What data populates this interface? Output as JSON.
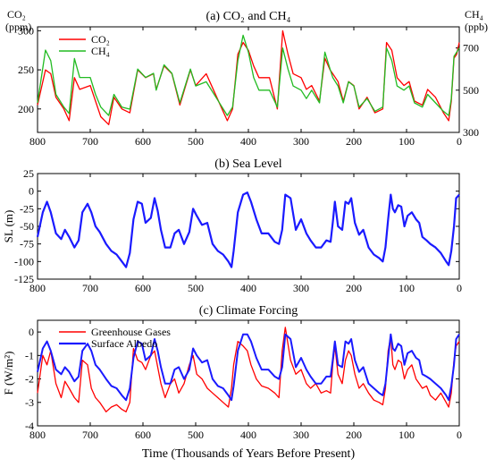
{
  "colors": {
    "co2": "#ff0000",
    "ch4": "#22bb22",
    "sea_level": "#1a1aff",
    "ghg": "#ff0000",
    "albedo": "#1a1aff",
    "axis": "#000000"
  },
  "xlabel": "Time (Thousands of Years Before Present)",
  "chart_data": [
    {
      "type": "line",
      "title": "(a)  CO₂ and CH₄",
      "ylabel_left": "CO₂ (ppm)",
      "ylabel_right": "CH₄ (ppb)",
      "xlim": [
        800,
        0
      ],
      "ylim": [
        170,
        305
      ],
      "ylim_right": [
        300,
        800
      ],
      "xticks": [
        800,
        700,
        600,
        500,
        400,
        300,
        200,
        100,
        0
      ],
      "yticks": [
        200,
        250,
        300
      ],
      "yticks_right": [
        300,
        500,
        700
      ],
      "legend": "top-left",
      "series": [
        {
          "name": "CO₂",
          "axis": "left",
          "x": [
            800,
            785,
            775,
            765,
            750,
            740,
            730,
            720,
            700,
            690,
            680,
            665,
            655,
            640,
            625,
            610,
            595,
            580,
            575,
            560,
            545,
            530,
            510,
            500,
            480,
            460,
            440,
            430,
            420,
            410,
            400,
            390,
            380,
            360,
            345,
            335,
            325,
            315,
            300,
            290,
            280,
            265,
            255,
            245,
            240,
            230,
            220,
            210,
            200,
            190,
            175,
            160,
            145,
            138,
            128,
            118,
            105,
            95,
            85,
            70,
            60,
            45,
            30,
            20,
            15,
            10,
            5,
            0
          ],
          "values": [
            205,
            250,
            245,
            215,
            200,
            185,
            240,
            225,
            230,
            210,
            190,
            180,
            215,
            200,
            195,
            250,
            240,
            245,
            225,
            255,
            245,
            205,
            250,
            230,
            245,
            215,
            185,
            200,
            270,
            285,
            275,
            255,
            240,
            240,
            200,
            300,
            270,
            245,
            240,
            225,
            230,
            210,
            265,
            250,
            245,
            235,
            210,
            235,
            230,
            200,
            215,
            195,
            200,
            285,
            275,
            240,
            230,
            235,
            210,
            205,
            225,
            215,
            195,
            185,
            210,
            265,
            270,
            285
          ]
        },
        {
          "name": "CH₄",
          "axis": "right",
          "x": [
            800,
            785,
            775,
            765,
            750,
            740,
            730,
            720,
            700,
            690,
            680,
            665,
            655,
            640,
            625,
            610,
            595,
            580,
            575,
            560,
            545,
            530,
            510,
            500,
            480,
            460,
            440,
            430,
            420,
            410,
            400,
            390,
            380,
            360,
            345,
            335,
            325,
            315,
            300,
            290,
            280,
            265,
            255,
            245,
            240,
            230,
            220,
            210,
            200,
            190,
            175,
            160,
            145,
            138,
            128,
            118,
            105,
            95,
            85,
            70,
            60,
            45,
            30,
            20,
            15,
            10,
            5,
            0
          ],
          "values": [
            440,
            690,
            640,
            480,
            420,
            390,
            650,
            560,
            560,
            480,
            420,
            380,
            480,
            420,
            410,
            600,
            560,
            580,
            500,
            620,
            580,
            440,
            600,
            520,
            540,
            460,
            380,
            420,
            640,
            760,
            680,
            560,
            500,
            500,
            420,
            700,
            600,
            520,
            500,
            460,
            500,
            440,
            680,
            600,
            560,
            520,
            440,
            540,
            520,
            420,
            460,
            400,
            420,
            700,
            640,
            520,
            500,
            520,
            440,
            420,
            480,
            440,
            400,
            380,
            460,
            660,
            680,
            700
          ]
        }
      ]
    },
    {
      "type": "line",
      "title": "(b)  Sea Level",
      "ylabel": "SL (m)",
      "xlim": [
        800,
        0
      ],
      "ylim": [
        -125,
        25
      ],
      "xticks": [
        800,
        700,
        600,
        500,
        400,
        300,
        200,
        100,
        0
      ],
      "yticks": [
        25,
        0,
        -25,
        -50,
        -75,
        -100,
        -125
      ],
      "series": [
        {
          "name": "",
          "x": [
            800,
            790,
            782,
            775,
            765,
            755,
            748,
            740,
            730,
            722,
            715,
            705,
            698,
            690,
            682,
            670,
            660,
            650,
            640,
            632,
            625,
            618,
            610,
            602,
            595,
            585,
            578,
            572,
            566,
            558,
            548,
            540,
            532,
            522,
            512,
            505,
            498,
            488,
            478,
            468,
            458,
            448,
            438,
            432,
            428,
            420,
            410,
            402,
            395,
            385,
            375,
            362,
            350,
            342,
            336,
            330,
            320,
            310,
            300,
            290,
            282,
            272,
            262,
            252,
            244,
            240,
            236,
            230,
            222,
            216,
            210,
            205,
            198,
            190,
            182,
            172,
            162,
            152,
            145,
            140,
            135,
            130,
            126,
            122,
            116,
            110,
            104,
            98,
            90,
            82,
            76,
            70,
            62,
            55,
            45,
            35,
            25,
            20,
            15,
            10,
            6,
            0
          ],
          "values": [
            -65,
            -30,
            -15,
            -30,
            -60,
            -68,
            -55,
            -65,
            -80,
            -70,
            -30,
            -18,
            -30,
            -50,
            -58,
            -75,
            -85,
            -90,
            -100,
            -108,
            -88,
            -40,
            -15,
            -18,
            -45,
            -38,
            -10,
            -28,
            -55,
            -80,
            -80,
            -60,
            -55,
            -75,
            -58,
            -25,
            -35,
            -48,
            -45,
            -75,
            -85,
            -90,
            -100,
            -108,
            -85,
            -30,
            -5,
            -2,
            -15,
            -40,
            -60,
            -60,
            -72,
            -75,
            -55,
            -5,
            -10,
            -55,
            -40,
            -60,
            -70,
            -80,
            -80,
            -70,
            -72,
            -45,
            -15,
            -50,
            -55,
            -15,
            -18,
            -10,
            -45,
            -62,
            -55,
            -80,
            -90,
            -95,
            -100,
            -80,
            -40,
            -5,
            -25,
            -30,
            -20,
            -22,
            -50,
            -35,
            -30,
            -40,
            -45,
            -65,
            -70,
            -75,
            -80,
            -88,
            -100,
            -105,
            -85,
            -50,
            -10,
            -5
          ]
        }
      ]
    },
    {
      "type": "line",
      "title": "(c)  Climate Forcing",
      "ylabel": "F (W/m²)",
      "xlabel": "Time (Thousands of Years Before Present)",
      "xlim": [
        800,
        0
      ],
      "ylim": [
        -4,
        0.5
      ],
      "xticks": [
        800,
        700,
        600,
        500,
        400,
        300,
        200,
        100,
        0
      ],
      "yticks": [
        0,
        -1,
        -2,
        -3,
        -4
      ],
      "legend": "top-left",
      "series": [
        {
          "name": "Greenhouse Gases",
          "x": [
            800,
            790,
            782,
            775,
            765,
            755,
            748,
            740,
            730,
            722,
            715,
            705,
            698,
            690,
            682,
            670,
            660,
            650,
            640,
            632,
            625,
            618,
            610,
            602,
            595,
            585,
            578,
            572,
            566,
            558,
            548,
            540,
            532,
            522,
            512,
            505,
            498,
            488,
            478,
            468,
            458,
            448,
            438,
            432,
            428,
            420,
            410,
            402,
            395,
            385,
            375,
            362,
            350,
            342,
            336,
            330,
            320,
            310,
            300,
            290,
            282,
            272,
            262,
            252,
            244,
            240,
            236,
            230,
            222,
            216,
            210,
            205,
            198,
            190,
            182,
            172,
            162,
            152,
            145,
            140,
            135,
            130,
            126,
            122,
            116,
            110,
            104,
            98,
            90,
            82,
            76,
            70,
            62,
            55,
            45,
            35,
            25,
            20,
            15,
            10,
            6,
            0
          ],
          "values": [
            -2.6,
            -1.0,
            -1.4,
            -0.8,
            -2.2,
            -2.8,
            -2.1,
            -2.4,
            -2.8,
            -3.0,
            -1.2,
            -1.4,
            -2.4,
            -2.8,
            -3.0,
            -3.4,
            -3.2,
            -3.1,
            -3.3,
            -3.4,
            -3.0,
            -0.7,
            -1.2,
            -1.3,
            -1.6,
            -1.0,
            -0.8,
            -1.5,
            -2.2,
            -2.8,
            -2.2,
            -2.0,
            -2.6,
            -2.2,
            -1.4,
            -1.0,
            -1.8,
            -2.0,
            -2.4,
            -2.6,
            -2.8,
            -3.0,
            -3.2,
            -2.4,
            -1.4,
            -0.4,
            -0.6,
            -0.8,
            -1.4,
            -2.0,
            -2.3,
            -2.4,
            -2.6,
            -2.8,
            -0.8,
            0.2,
            -1.2,
            -1.8,
            -1.6,
            -2.2,
            -2.4,
            -2.2,
            -2.6,
            -2.5,
            -2.6,
            -1.4,
            -0.6,
            -1.8,
            -2.2,
            -1.2,
            -0.8,
            -1.0,
            -1.8,
            -2.4,
            -2.2,
            -2.6,
            -2.9,
            -3.0,
            -3.1,
            -2.4,
            -0.8,
            -0.2,
            -1.4,
            -1.6,
            -1.2,
            -1.3,
            -2.0,
            -1.6,
            -1.4,
            -2.0,
            -2.2,
            -2.4,
            -2.3,
            -2.7,
            -2.9,
            -2.6,
            -3.0,
            -3.2,
            -2.6,
            -1.2,
            -0.6,
            -0.4
          ]
        },
        {
          "name": "Surface Albedo",
          "x": [
            800,
            790,
            782,
            775,
            765,
            755,
            748,
            740,
            730,
            722,
            715,
            705,
            698,
            690,
            682,
            670,
            660,
            650,
            640,
            632,
            625,
            618,
            610,
            602,
            595,
            585,
            578,
            572,
            566,
            558,
            548,
            540,
            532,
            522,
            512,
            505,
            498,
            488,
            478,
            468,
            458,
            448,
            438,
            432,
            428,
            420,
            410,
            402,
            395,
            385,
            375,
            362,
            350,
            342,
            336,
            330,
            320,
            310,
            300,
            290,
            282,
            272,
            262,
            252,
            244,
            240,
            236,
            230,
            222,
            216,
            210,
            205,
            198,
            190,
            182,
            172,
            162,
            152,
            145,
            140,
            135,
            130,
            126,
            122,
            116,
            110,
            104,
            98,
            90,
            82,
            76,
            70,
            62,
            55,
            45,
            35,
            25,
            20,
            15,
            10,
            6,
            0
          ],
          "values": [
            -1.7,
            -0.7,
            -0.4,
            -0.8,
            -1.6,
            -1.8,
            -1.5,
            -1.7,
            -2.1,
            -1.9,
            -0.8,
            -0.5,
            -0.8,
            -1.4,
            -1.6,
            -2.0,
            -2.3,
            -2.4,
            -2.7,
            -2.9,
            -2.4,
            -1.1,
            -0.4,
            -0.5,
            -1.2,
            -1.0,
            -0.3,
            -0.8,
            -1.5,
            -2.2,
            -2.2,
            -1.6,
            -1.5,
            -2.0,
            -1.6,
            -0.7,
            -1.0,
            -1.3,
            -1.2,
            -2.0,
            -2.3,
            -2.4,
            -2.7,
            -2.9,
            -2.3,
            -0.8,
            -0.1,
            -0.1,
            -0.4,
            -1.1,
            -1.6,
            -1.6,
            -1.9,
            -2.0,
            -1.5,
            -0.1,
            -0.3,
            -1.5,
            -1.1,
            -1.6,
            -1.9,
            -2.2,
            -2.2,
            -1.9,
            -1.9,
            -1.2,
            -0.4,
            -1.4,
            -1.5,
            -0.4,
            -0.5,
            -0.3,
            -1.2,
            -1.7,
            -1.5,
            -2.2,
            -2.4,
            -2.6,
            -2.7,
            -2.2,
            -1.1,
            -0.1,
            -0.7,
            -0.8,
            -0.5,
            -0.6,
            -1.4,
            -0.9,
            -0.8,
            -1.1,
            -1.2,
            -1.8,
            -1.9,
            -2.0,
            -2.2,
            -2.4,
            -2.7,
            -2.9,
            -2.3,
            -1.4,
            -0.3,
            -0.1
          ]
        }
      ]
    }
  ]
}
